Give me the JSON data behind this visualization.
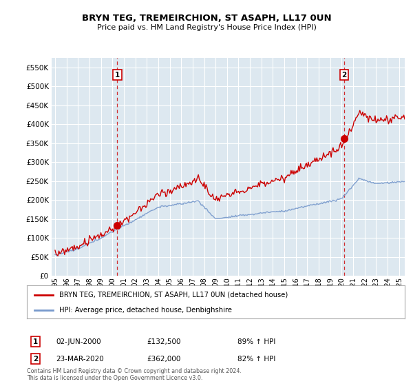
{
  "title": "BRYN TEG, TREMEIRCHION, ST ASAPH, LL17 0UN",
  "subtitle": "Price paid vs. HM Land Registry's House Price Index (HPI)",
  "legend_entry1": "BRYN TEG, TREMEIRCHION, ST ASAPH, LL17 0UN (detached house)",
  "legend_entry2": "HPI: Average price, detached house, Denbighshire",
  "sale1_date": "02-JUN-2000",
  "sale1_price": "£132,500",
  "sale1_hpi": "89% ↑ HPI",
  "sale2_date": "23-MAR-2020",
  "sale2_price": "£362,000",
  "sale2_hpi": "82% ↑ HPI",
  "footnote": "Contains HM Land Registry data © Crown copyright and database right 2024.\nThis data is licensed under the Open Government Licence v3.0.",
  "sale1_x": 2000.42,
  "sale1_y": 132500,
  "sale2_x": 2020.22,
  "sale2_y": 362000,
  "red_color": "#cc0000",
  "blue_color": "#7799cc",
  "vline_color": "#cc0000",
  "background_color": "#ffffff",
  "plot_bg_color": "#dde8f0",
  "grid_color": "#ffffff",
  "ylim": [
    0,
    575000
  ],
  "xlim_start": 1994.7,
  "xlim_end": 2025.5
}
